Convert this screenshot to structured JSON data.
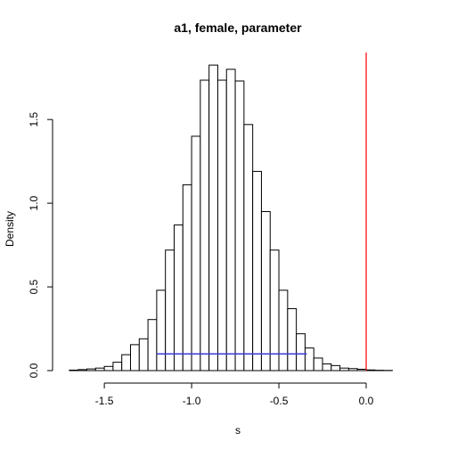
{
  "chart_data": {
    "type": "bar",
    "subtype": "histogram",
    "title": "a1, female, parameter",
    "xlabel": "s",
    "ylabel": "Density",
    "xlim": [
      -1.72,
      0.25
    ],
    "ylim": [
      0,
      1.9
    ],
    "x_ticks": [
      -1.5,
      -1.0,
      -0.5,
      0.0
    ],
    "x_tick_labels": [
      "-1.5",
      "-1.0",
      "-0.5",
      "0.0"
    ],
    "y_ticks": [
      0.0,
      0.5,
      1.0,
      1.5
    ],
    "y_tick_labels": [
      "0.0",
      "0.5",
      "1.0",
      "1.5"
    ],
    "grid": false,
    "legend": "none",
    "bin_width": 0.05,
    "bin_start": -1.7,
    "values": [
      0.003,
      0.006,
      0.01,
      0.015,
      0.025,
      0.05,
      0.095,
      0.155,
      0.19,
      0.305,
      0.48,
      0.72,
      0.87,
      1.11,
      1.4,
      1.735,
      1.825,
      1.735,
      1.8,
      1.73,
      1.47,
      1.19,
      0.95,
      0.72,
      0.48,
      0.37,
      0.22,
      0.135,
      0.075,
      0.04,
      0.03,
      0.015,
      0.012,
      0.008,
      0.004,
      0.002,
      0.001
    ],
    "interval_line": {
      "x": [
        -1.2,
        -0.34
      ],
      "y": 0.1,
      "color": "#3a3adf"
    },
    "reference_line": {
      "x": 0.0,
      "color": "#ff0000"
    },
    "bar_fill": "#ffffff",
    "bar_stroke": "#000000"
  }
}
